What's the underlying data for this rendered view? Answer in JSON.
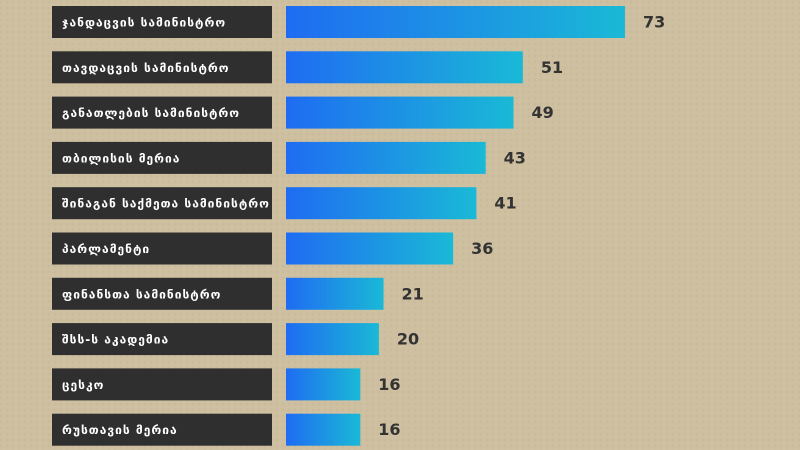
{
  "chart_data": {
    "type": "bar",
    "categories": [
      "ჯანდაცვის სამინისტრო",
      "თავდაცვის სამინისტრო",
      "განათლების სამინისტრო",
      "თბილისის მერია",
      "შინაგან საქმეთა სამინისტრო",
      "პარლამენტი",
      "ფინანსთა სამინისტრო",
      "შსს-ს აკადემია",
      "ცესკო",
      "რუსთავის მერია"
    ],
    "values": [
      73,
      51,
      49,
      43,
      41,
      36,
      21,
      20,
      16,
      16
    ],
    "color": [
      "#1f6cf2",
      "#1ab9d6"
    ]
  }
}
